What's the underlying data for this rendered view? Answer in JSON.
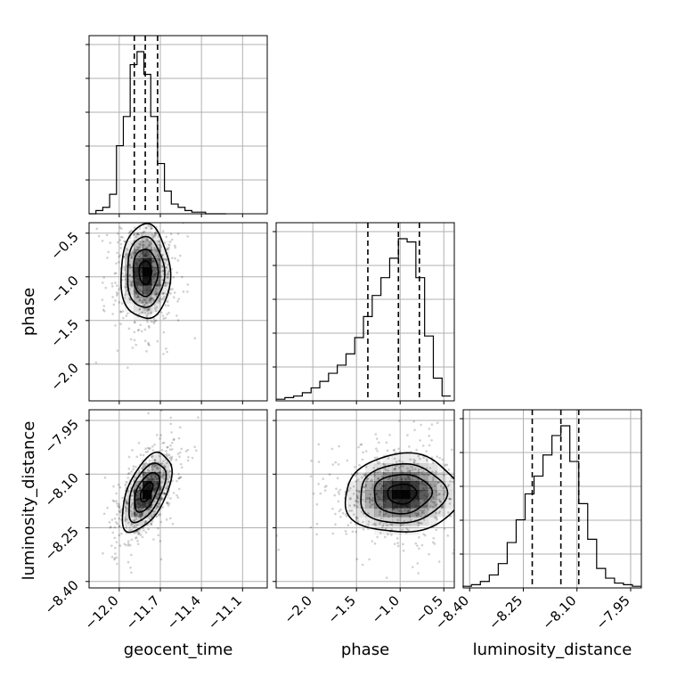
{
  "chart_data": {
    "type": "corner",
    "parameters": [
      "geocent_time",
      "phase",
      "luminosity_distance"
    ],
    "grid": true,
    "ranges": {
      "geocent_time": [
        -12.22,
        -10.92
      ],
      "phase": [
        -2.42,
        -0.38
      ],
      "luminosity_distance": [
        -8.418,
        -7.92
      ]
    },
    "ticks": {
      "geocent_time": [
        "−12.0",
        "−11.7",
        "−11.4",
        "−11.1"
      ],
      "phase": [
        "−2.0",
        "−1.5",
        "−1.0",
        "−0.5"
      ],
      "luminosity_distance": [
        "−8.40",
        "−8.25",
        "−8.10",
        "−7.95"
      ]
    },
    "tick_values": {
      "geocent_time": [
        -12.0,
        -11.7,
        -11.4,
        -11.1
      ],
      "phase": [
        -2.0,
        -1.5,
        -1.0,
        -0.5
      ],
      "luminosity_distance": [
        -8.4,
        -8.25,
        -8.1,
        -7.95
      ]
    },
    "marginals": [
      {
        "parameter": "geocent_time",
        "quantiles": [
          -11.89,
          -11.81,
          -11.72
        ],
        "bin_edges": [
          -12.22,
          -12.17,
          -12.12,
          -12.07,
          -12.02,
          -11.97,
          -11.92,
          -11.87,
          -11.82,
          -11.77,
          -11.72,
          -11.67,
          -11.62,
          -11.57,
          -11.52,
          -11.47,
          -11.42,
          -11.37,
          -11.32,
          -11.27,
          -11.22
        ],
        "counts": [
          0,
          2,
          4,
          12,
          42,
          60,
          92,
          100,
          86,
          60,
          31,
          14,
          6,
          4,
          2,
          1,
          1,
          0,
          0,
          0
        ]
      },
      {
        "parameter": "phase",
        "quantiles": [
          -1.37,
          -1.02,
          -0.78
        ],
        "bin_edges": [
          -2.42,
          -2.32,
          -2.22,
          -2.12,
          -2.02,
          -1.92,
          -1.82,
          -1.72,
          -1.62,
          -1.52,
          -1.42,
          -1.32,
          -1.22,
          -1.12,
          -1.02,
          -0.92,
          -0.82,
          -0.72,
          -0.62,
          -0.52,
          -0.42
        ],
        "counts": [
          1,
          2,
          3,
          5,
          8,
          12,
          17,
          22,
          29,
          39,
          52,
          65,
          76,
          88,
          100,
          98,
          76,
          40,
          14,
          3
        ]
      },
      {
        "parameter": "luminosity_distance",
        "quantiles": [
          -8.225,
          -8.145,
          -8.095
        ],
        "bin_edges": [
          -8.42,
          -8.395,
          -8.37,
          -8.345,
          -8.32,
          -8.295,
          -8.27,
          -8.245,
          -8.22,
          -8.195,
          -8.17,
          -8.145,
          -8.12,
          -8.095,
          -8.07,
          -8.045,
          -8.02,
          -7.995,
          -7.97,
          -7.945,
          -7.92
        ],
        "counts": [
          1,
          2,
          4,
          8,
          15,
          28,
          42,
          58,
          69,
          82,
          94,
          100,
          78,
          52,
          30,
          12,
          6,
          3,
          2,
          1
        ]
      }
    ],
    "joint": [
      {
        "x": "geocent_time",
        "y": "phase",
        "center": [
          -11.81,
          -0.95
        ],
        "sigma": [
          0.09,
          0.27
        ],
        "rho": 0.0,
        "contour_levels_sigma": [
          0.5,
          1.0,
          1.5,
          2.0
        ]
      },
      {
        "x": "geocent_time",
        "y": "luminosity_distance",
        "center": [
          -11.8,
          -8.15
        ],
        "sigma": [
          0.09,
          0.055
        ],
        "rho": 0.55,
        "contour_levels_sigma": [
          0.5,
          1.0,
          1.5,
          2.0
        ]
      },
      {
        "x": "phase",
        "y": "luminosity_distance",
        "center": [
          -0.98,
          -8.155
        ],
        "sigma": [
          0.33,
          0.055
        ],
        "rho": 0.05,
        "contour_levels_sigma": [
          0.5,
          1.0,
          1.5,
          2.0
        ]
      }
    ]
  }
}
